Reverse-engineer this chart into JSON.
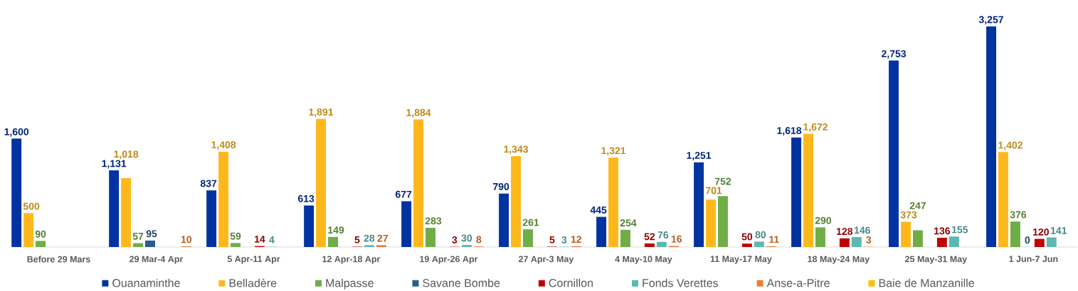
{
  "chart_data": {
    "type": "bar",
    "categories": [
      "Before 29 Mars",
      "29 Mar-4 Apr",
      "5 Apr-11 Apr",
      "12 Apr-18 Apr",
      "19 Apr-26 Apr",
      "27 Apr-3 May",
      "4 May-10 May",
      "11 May-17 May",
      "18 May-24 May",
      "25 May-31 May",
      "1 Jun-7 Jun"
    ],
    "series": [
      {
        "name": "Ouanaminthe",
        "color": "#0033a0",
        "values": [
          1600,
          1131,
          837,
          613,
          677,
          790,
          445,
          1251,
          1618,
          2753,
          3257
        ],
        "value_labels": [
          "1,600",
          "1,131",
          "837",
          "613",
          "677",
          "790",
          "445",
          "1,251",
          "1,618",
          "2,753",
          "3,257"
        ]
      },
      {
        "name": "Belladère",
        "color": "#ffb81c",
        "values": [
          500,
          1018,
          1408,
          1891,
          1884,
          1343,
          1321,
          701,
          1672,
          373,
          1402
        ],
        "value_labels": [
          "500",
          "1,018",
          "1,408",
          "1,891",
          "1,884",
          "1,343",
          "1,321",
          "701",
          "1,672",
          "373",
          "1,402"
        ]
      },
      {
        "name": "Malpasse",
        "color": "#70ad47",
        "values": [
          90,
          57,
          59,
          149,
          283,
          261,
          254,
          752,
          290,
          247,
          376
        ],
        "value_labels": [
          "90",
          "57",
          "59",
          "149",
          "283",
          "261",
          "254",
          "752",
          "290",
          "247",
          "376"
        ]
      },
      {
        "name": "Savane Bombe",
        "color": "#255e91",
        "values": [
          null,
          95,
          null,
          null,
          null,
          null,
          null,
          null,
          null,
          null,
          0
        ],
        "value_labels": [
          null,
          "95",
          null,
          null,
          null,
          null,
          null,
          null,
          null,
          null,
          "0"
        ]
      },
      {
        "name": "Cornillon",
        "color": "#c00000",
        "values": [
          null,
          null,
          14,
          5,
          3,
          5,
          52,
          50,
          128,
          136,
          120
        ],
        "value_labels": [
          null,
          null,
          "14",
          "5",
          "3",
          "5",
          "52",
          "50",
          "128",
          "136",
          "120"
        ]
      },
      {
        "name": "Fonds Verettes",
        "color": "#5bb8b4",
        "values": [
          null,
          null,
          4,
          28,
          30,
          3,
          76,
          80,
          146,
          155,
          141
        ],
        "value_labels": [
          null,
          null,
          "4",
          "28",
          "30",
          "3",
          "76",
          "80",
          "146",
          "155",
          "141"
        ]
      },
      {
        "name": "Anse-a-Pitre",
        "color": "#ed7d31",
        "values": [
          null,
          10,
          null,
          27,
          8,
          12,
          16,
          11,
          3,
          null,
          null
        ],
        "value_labels": [
          null,
          "10",
          null,
          "27",
          "8",
          "12",
          "16",
          "11",
          "3",
          null,
          null
        ]
      },
      {
        "name": "Baie de Manzanille",
        "color": "#ffc000",
        "values": [
          null,
          null,
          null,
          null,
          null,
          null,
          null,
          null,
          null,
          null,
          null
        ]
      }
    ],
    "legend": "bottom"
  }
}
